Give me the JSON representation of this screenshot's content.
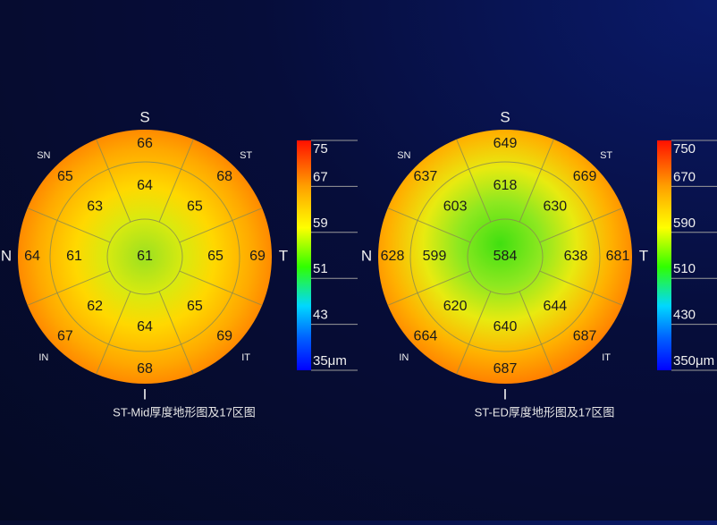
{
  "maps": [
    {
      "title": "ST-Mid厚度地形图及17区图",
      "directions": [
        "S",
        "ST",
        "T",
        "IT",
        "I",
        "IN",
        "N",
        "SN"
      ],
      "center": 61,
      "inner_ring": [
        64,
        65,
        65,
        65,
        64,
        62,
        61,
        63
      ],
      "outer_ring": [
        66,
        68,
        69,
        69,
        68,
        67,
        64,
        65
      ],
      "scale_ticks": [
        75,
        67,
        59,
        51,
        43,
        {
          "value": 35,
          "label": "35μm"
        }
      ]
    },
    {
      "title": "ST-ED厚度地形图及17区图",
      "directions": [
        "S",
        "ST",
        "T",
        "IT",
        "I",
        "IN",
        "N",
        "SN"
      ],
      "center": 584,
      "inner_ring": [
        618,
        630,
        638,
        644,
        640,
        620,
        599,
        603
      ],
      "outer_ring": [
        649,
        669,
        681,
        687,
        687,
        664,
        628,
        637
      ],
      "scale_ticks": [
        750,
        670,
        590,
        510,
        430,
        {
          "value": 350,
          "label": "350μm"
        }
      ]
    }
  ]
}
